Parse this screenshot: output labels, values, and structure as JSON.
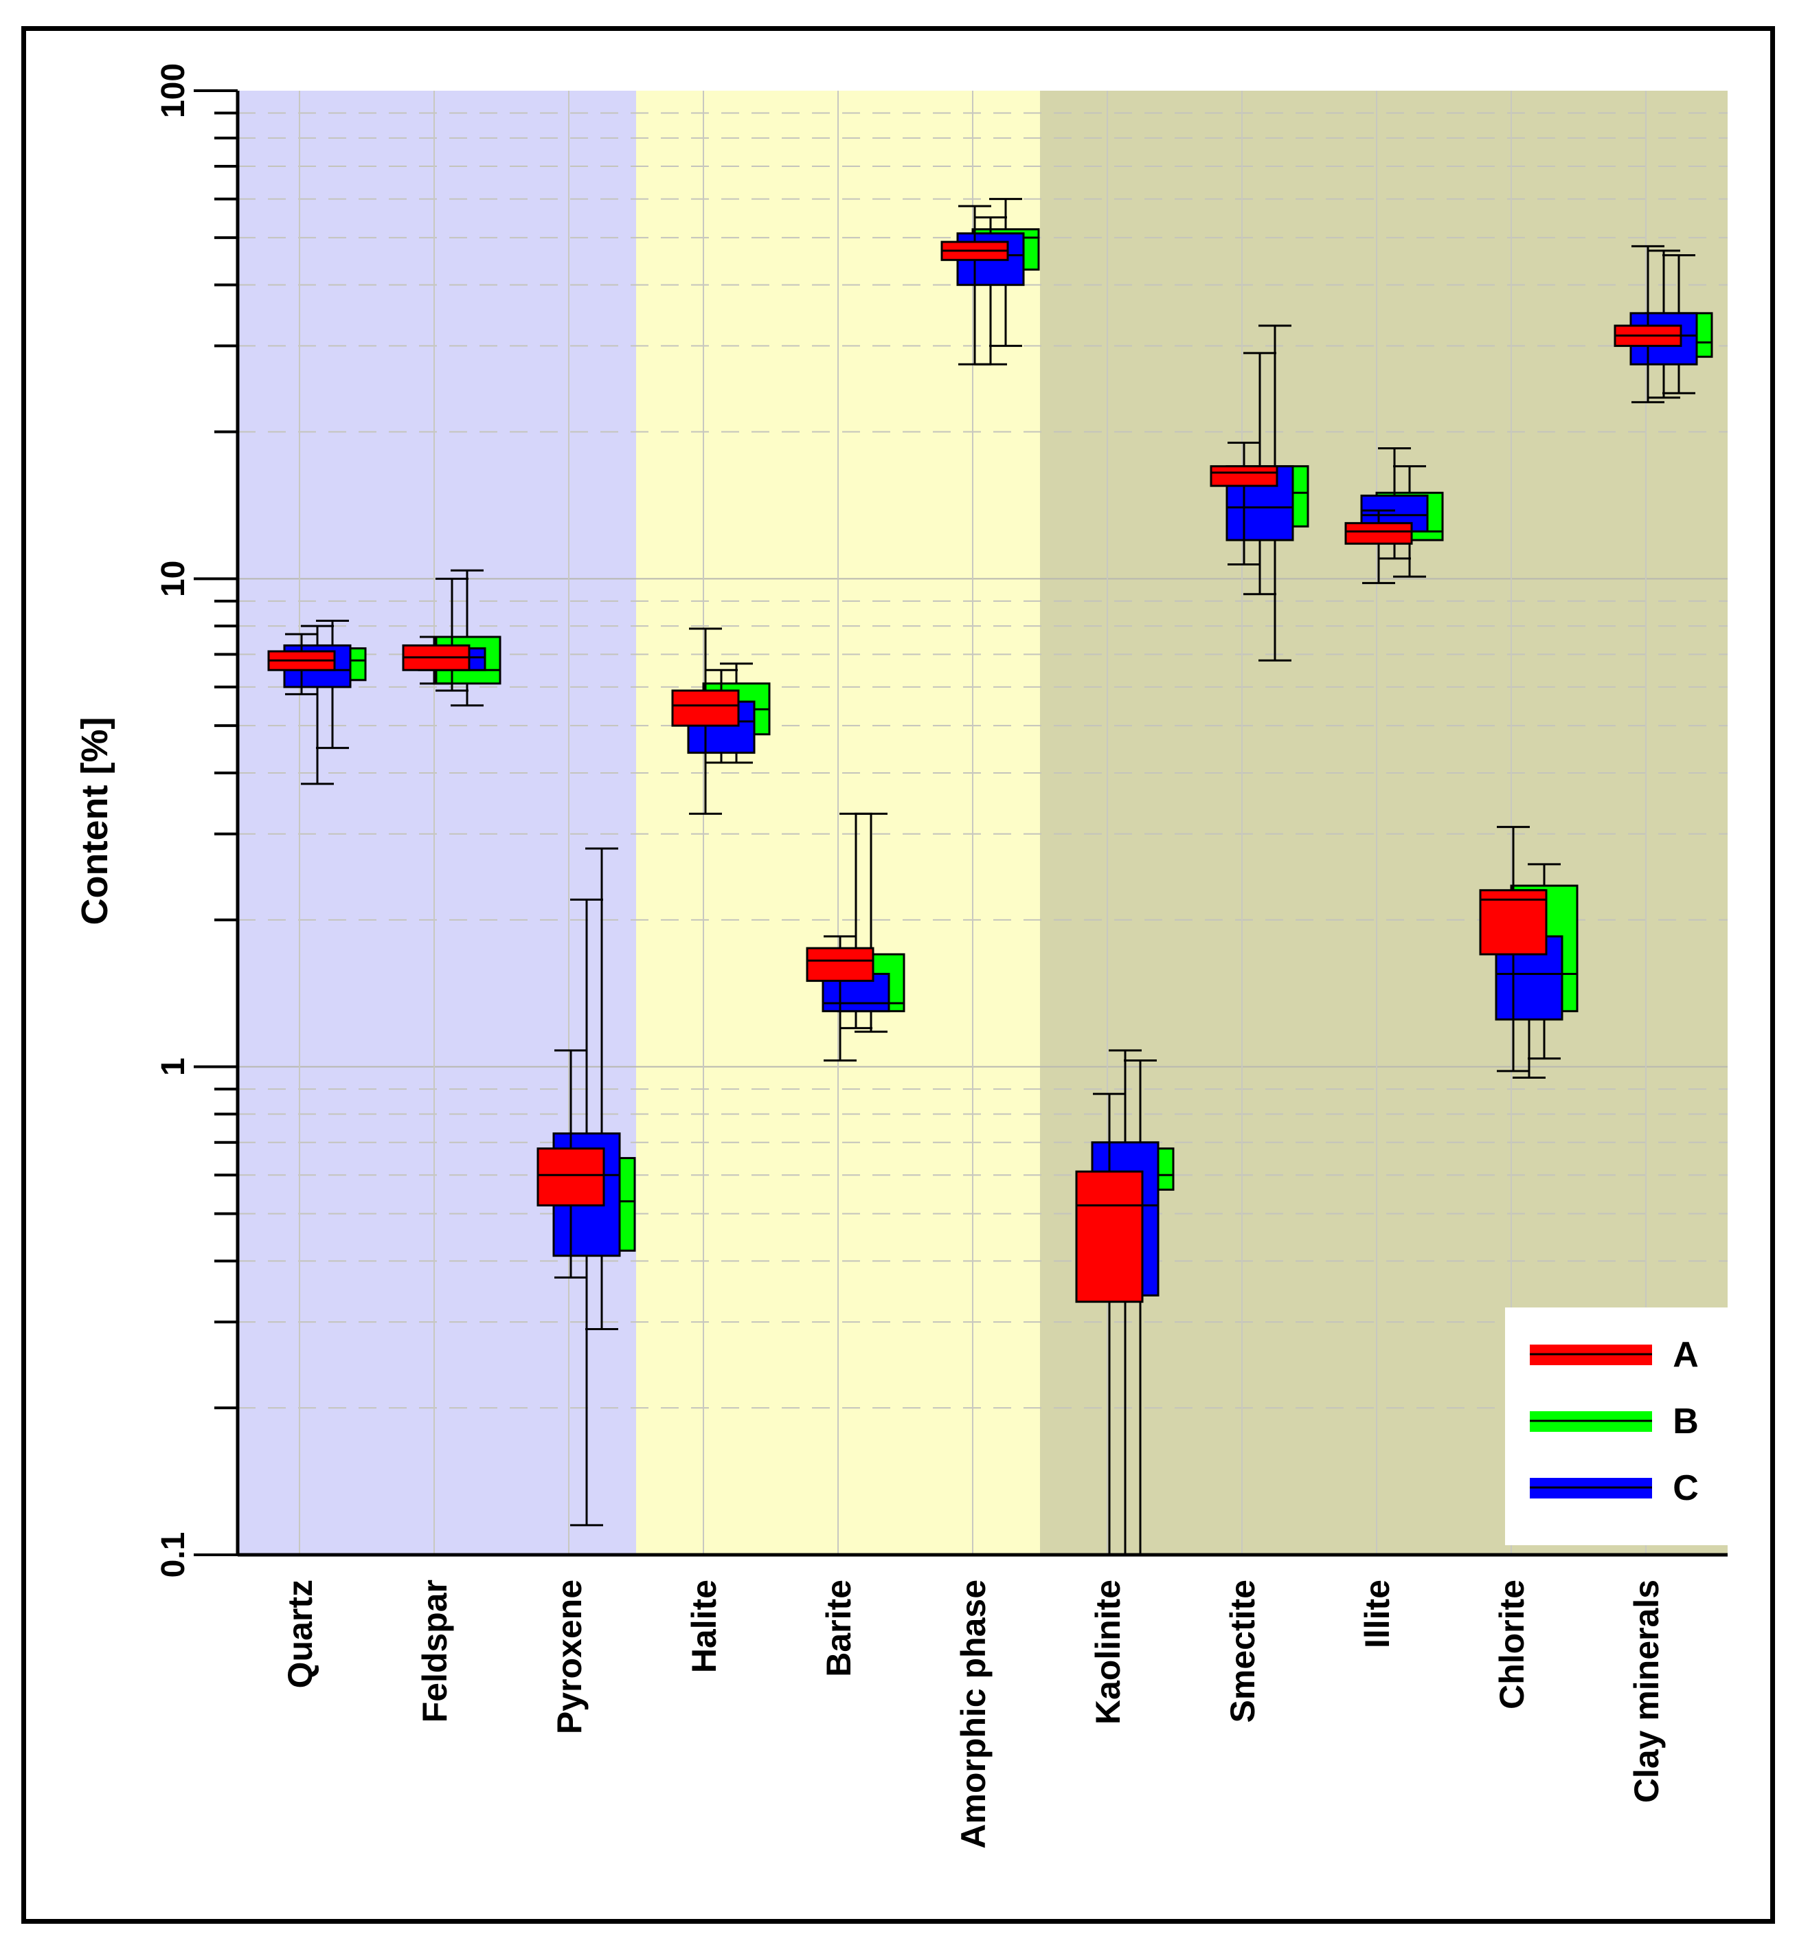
{
  "chart_data": {
    "type": "box",
    "title": "",
    "xlabel": "",
    "ylabel": "Content [%]",
    "yscale": "log",
    "ylim": [
      0.1,
      100
    ],
    "yticks": [
      "0.1",
      "1",
      "10",
      "100"
    ],
    "grid": true,
    "legend_position": "bottom-right",
    "categories": [
      "Quartz",
      "Feldspar",
      "Pyroxene",
      "Halite",
      "Barite",
      "Amorphic phase",
      "Kaolinite",
      "Smectite",
      "Illite",
      "Chlorite",
      "Clay minerals"
    ],
    "group_backgrounds": [
      {
        "name": "group-1",
        "first": 0,
        "last": 2,
        "color": "#d6d6fa"
      },
      {
        "name": "group-2",
        "first": 3,
        "last": 5,
        "color": "#fdfdc8"
      },
      {
        "name": "group-3",
        "first": 6,
        "last": 10,
        "color": "#d5d5ab"
      }
    ],
    "series": [
      {
        "name": "A",
        "color": "#ff0000",
        "boxes": [
          {
            "min": 5.8,
            "q1": 6.5,
            "median": 6.8,
            "q3": 7.1,
            "max": 7.7
          },
          {
            "min": 6.1,
            "q1": 6.5,
            "median": 6.9,
            "q3": 7.3,
            "max": 7.6
          },
          {
            "min": 0.37,
            "q1": 0.52,
            "median": 0.6,
            "q3": 0.68,
            "max": 1.08
          },
          {
            "min": 3.3,
            "q1": 5.0,
            "median": 5.5,
            "q3": 5.9,
            "max": 7.9
          },
          {
            "min": 1.03,
            "q1": 1.5,
            "median": 1.65,
            "q3": 1.75,
            "max": 1.85
          },
          {
            "min": 27.5,
            "q1": 45.0,
            "median": 47.0,
            "q3": 49.0,
            "max": 58.0
          },
          {
            "min": 0.1,
            "q1": 0.33,
            "median": 0.52,
            "q3": 0.61,
            "max": 0.88
          },
          {
            "min": 10.7,
            "q1": 15.5,
            "median": 16.5,
            "q3": 17.0,
            "max": 19.0
          },
          {
            "min": 9.8,
            "q1": 11.8,
            "median": 12.5,
            "q3": 13.0,
            "max": 13.8
          },
          {
            "min": 0.98,
            "q1": 1.7,
            "median": 2.2,
            "q3": 2.3,
            "max": 3.1
          },
          {
            "min": 23.0,
            "q1": 30.0,
            "median": 31.5,
            "q3": 33.0,
            "max": 48.0
          }
        ]
      },
      {
        "name": "B",
        "color": "#00ff00",
        "boxes": [
          {
            "min": 4.5,
            "q1": 6.2,
            "median": 6.8,
            "q3": 7.2,
            "max": 8.2
          },
          {
            "min": 5.5,
            "q1": 6.1,
            "median": 6.5,
            "q3": 7.6,
            "max": 10.4
          },
          {
            "min": 0.29,
            "q1": 0.42,
            "median": 0.53,
            "q3": 0.65,
            "max": 2.8
          },
          {
            "min": 4.2,
            "q1": 4.8,
            "median": 5.4,
            "q3": 6.1,
            "max": 6.7
          },
          {
            "min": 1.18,
            "q1": 1.3,
            "median": 1.35,
            "q3": 1.7,
            "max": 3.3
          },
          {
            "min": 30.0,
            "q1": 43.0,
            "median": 50.0,
            "q3": 52.0,
            "max": 60.0
          },
          {
            "min": 0.1,
            "q1": 0.56,
            "median": 0.6,
            "q3": 0.68,
            "max": 1.03
          },
          {
            "min": 6.8,
            "q1": 12.8,
            "median": 15.0,
            "q3": 17.0,
            "max": 33.0
          },
          {
            "min": 10.1,
            "q1": 12.0,
            "median": 12.5,
            "q3": 15.0,
            "max": 17.0
          },
          {
            "min": 1.04,
            "q1": 1.3,
            "median": 1.55,
            "q3": 2.35,
            "max": 2.6
          },
          {
            "min": 24.0,
            "q1": 28.5,
            "median": 30.5,
            "q3": 35.0,
            "max": 46.0
          }
        ]
      },
      {
        "name": "C",
        "color": "#0000ff",
        "boxes": [
          {
            "min": 3.8,
            "q1": 6.0,
            "median": 6.5,
            "q3": 7.3,
            "max": 8.0
          },
          {
            "min": 5.9,
            "q1": 6.5,
            "median": 6.9,
            "q3": 7.2,
            "max": 10.0
          },
          {
            "min": 0.115,
            "q1": 0.41,
            "median": 0.6,
            "q3": 0.73,
            "max": 2.2
          },
          {
            "min": 4.2,
            "q1": 4.4,
            "median": 5.1,
            "q3": 5.6,
            "max": 6.5
          },
          {
            "min": 1.2,
            "q1": 1.3,
            "median": 1.35,
            "q3": 1.55,
            "max": 3.3
          },
          {
            "min": 27.5,
            "q1": 40.0,
            "median": 46.0,
            "q3": 51.0,
            "max": 55.0
          },
          {
            "min": 0.1,
            "q1": 0.34,
            "median": 0.52,
            "q3": 0.7,
            "max": 1.08
          },
          {
            "min": 9.3,
            "q1": 12.0,
            "median": 14.0,
            "q3": 17.0,
            "max": 29.0
          },
          {
            "min": 11.0,
            "q1": 12.5,
            "median": 13.5,
            "q3": 14.8,
            "max": 18.5
          },
          {
            "min": 0.95,
            "q1": 1.25,
            "median": 1.55,
            "q3": 1.85,
            "max": 2.3
          },
          {
            "min": 23.5,
            "q1": 27.5,
            "median": 31.5,
            "q3": 35.0,
            "max": 47.0
          }
        ]
      }
    ]
  }
}
